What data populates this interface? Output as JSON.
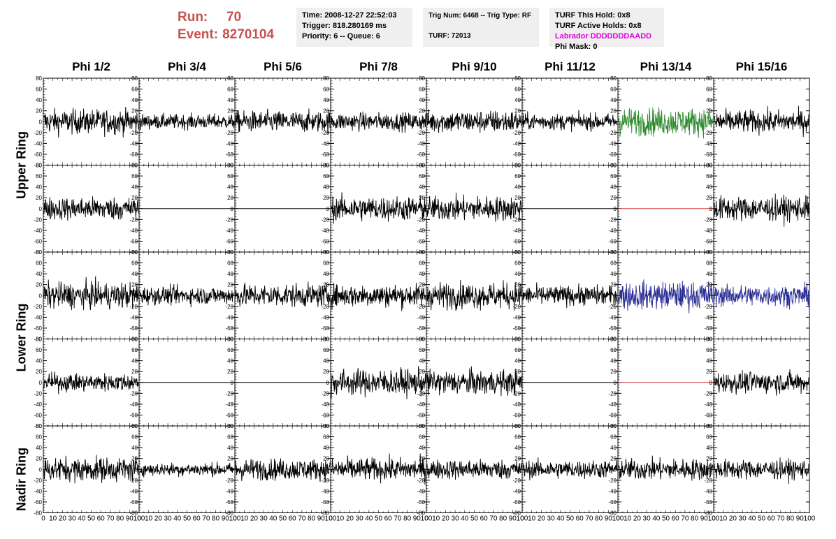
{
  "run": {
    "run_label": "Run:",
    "run_value": "70",
    "event_label": "Event:",
    "event_value": "8270104"
  },
  "time_box": {
    "time": "Time: 2008-12-27 22:52:03",
    "trigger": "Trigger: 818.280169 ms",
    "priority": "Priority: 6 -- Queue: 6"
  },
  "trig_box": {
    "trig": "Trig Num: 6468 -- Trig Type: RF",
    "turf": "TURF: 72013"
  },
  "turf_box": {
    "this_hold": "TURF This Hold: 0x8",
    "active_holds": "TURF Active Holds: 0x8",
    "labrador": "Labrador DDDDDDDAADD",
    "phi_mask": "Phi Mask: 0"
  },
  "chart_data": {
    "type": "line",
    "columns": [
      "Phi 1/2",
      "Phi 3/4",
      "Phi 5/6",
      "Phi 7/8",
      "Phi 9/10",
      "Phi 11/12",
      "Phi 13/14",
      "Phi 15/16"
    ],
    "rows": [
      "Upper Ring",
      "Lower Ring",
      "Nadir Ring"
    ],
    "xlim": [
      0,
      100
    ],
    "ylim": [
      -80,
      80
    ],
    "x_ticks": [
      0,
      10,
      20,
      30,
      40,
      50,
      60,
      70,
      80,
      90,
      100
    ],
    "y_ticks": [
      -80,
      -60,
      -40,
      -20,
      0,
      20,
      40,
      60,
      80
    ],
    "colors": {
      "trace": "#000000",
      "green": "#2e8b2e",
      "blue": "#2b2f96",
      "flat_red": "#d23a3a"
    },
    "panels": [
      [
        {
          "amp": 15,
          "c": "trace"
        },
        {
          "amp": 9,
          "c": "trace"
        },
        {
          "amp": 13,
          "c": "trace"
        },
        {
          "amp": 11,
          "c": "trace"
        },
        {
          "amp": 14,
          "c": "trace"
        },
        {
          "amp": 10,
          "c": "trace"
        },
        {
          "amp": 17,
          "c": "green"
        },
        {
          "amp": 14,
          "c": "trace"
        }
      ],
      [
        {
          "amp": 14,
          "c": "trace"
        },
        {
          "amp": 0,
          "c": "trace"
        },
        {
          "amp": 0,
          "c": "trace"
        },
        {
          "amp": 15,
          "c": "trace"
        },
        {
          "amp": 15,
          "c": "trace"
        },
        {
          "amp": 0,
          "c": "trace"
        },
        {
          "amp": 0,
          "c": "flat_red"
        },
        {
          "amp": 15,
          "c": "trace"
        }
      ],
      [
        {
          "amp": 16,
          "c": "trace"
        },
        {
          "amp": 11,
          "c": "trace"
        },
        {
          "amp": 14,
          "c": "trace"
        },
        {
          "amp": 14,
          "c": "trace"
        },
        {
          "amp": 16,
          "c": "trace"
        },
        {
          "amp": 12,
          "c": "trace"
        },
        {
          "amp": 17,
          "c": "blue"
        },
        {
          "amp": 13,
          "c": "blue"
        }
      ],
      [
        {
          "amp": 11,
          "c": "trace"
        },
        {
          "amp": 0,
          "c": "trace"
        },
        {
          "amp": 0,
          "c": "trace"
        },
        {
          "amp": 16,
          "c": "trace"
        },
        {
          "amp": 15,
          "c": "trace"
        },
        {
          "amp": 0,
          "c": "trace"
        },
        {
          "amp": 0,
          "c": "flat_red"
        },
        {
          "amp": 13,
          "c": "trace"
        }
      ],
      [
        {
          "amp": 15,
          "c": "trace"
        },
        {
          "amp": 8,
          "c": "trace"
        },
        {
          "amp": 13,
          "c": "trace"
        },
        {
          "amp": 14,
          "c": "trace"
        },
        {
          "amp": 12,
          "c": "trace"
        },
        {
          "amp": 11,
          "c": "trace"
        },
        {
          "amp": 13,
          "c": "trace"
        },
        {
          "amp": 12,
          "c": "trace"
        }
      ]
    ]
  }
}
